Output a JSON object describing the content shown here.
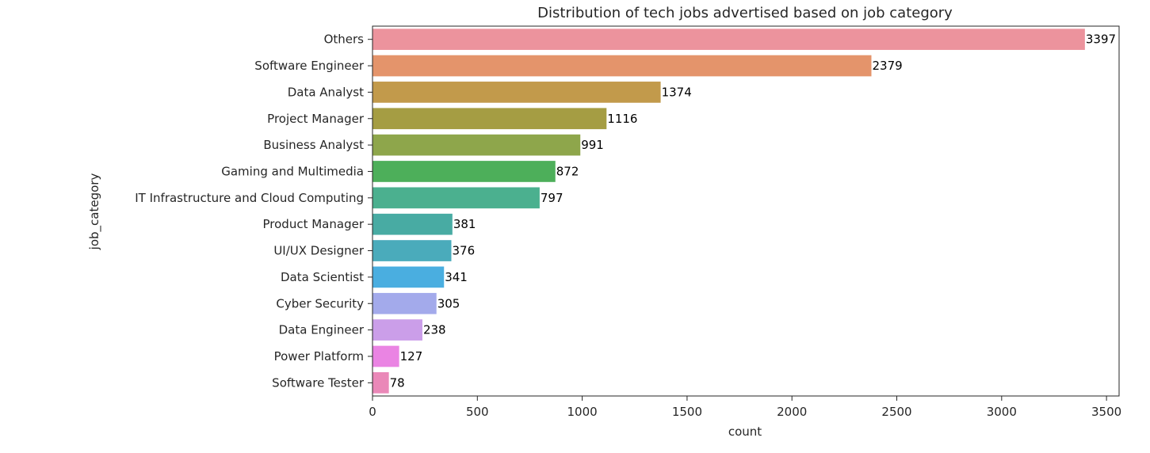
{
  "chart_data": {
    "type": "bar",
    "orientation": "horizontal",
    "title": "Distribution of tech jobs advertised based on job category",
    "xlabel": "count",
    "ylabel": "job_category",
    "xlim": [
      0,
      3560
    ],
    "xticks": [
      0,
      500,
      1000,
      1500,
      2000,
      2500,
      3000,
      3500
    ],
    "grid": false,
    "categories": [
      "Others",
      "Software Engineer",
      "Data Analyst",
      "Project Manager",
      "Business Analyst",
      "Gaming and Multimedia",
      "IT Infrastructure and Cloud Computing",
      "Product Manager",
      "UI/UX Designer",
      "Data Scientist",
      "Cyber Security",
      "Data Engineer",
      "Power Platform",
      "Software Tester"
    ],
    "values": [
      3397,
      2379,
      1374,
      1116,
      991,
      872,
      797,
      381,
      376,
      341,
      305,
      238,
      127,
      78
    ],
    "data_labels": [
      "3397",
      "2379",
      "1374",
      "1116",
      "991",
      "872",
      "797",
      "381",
      "376",
      "341",
      "305",
      "238",
      "127",
      "78"
    ],
    "colors": [
      "#ec939d",
      "#e4946b",
      "#c29a4b",
      "#a59d43",
      "#8ea64b",
      "#4daf5a",
      "#4bb08f",
      "#48aba3",
      "#4aabbb",
      "#4aaee0",
      "#a3aaeb",
      "#cb9ee9",
      "#ea84e3",
      "#ea88b8"
    ]
  }
}
